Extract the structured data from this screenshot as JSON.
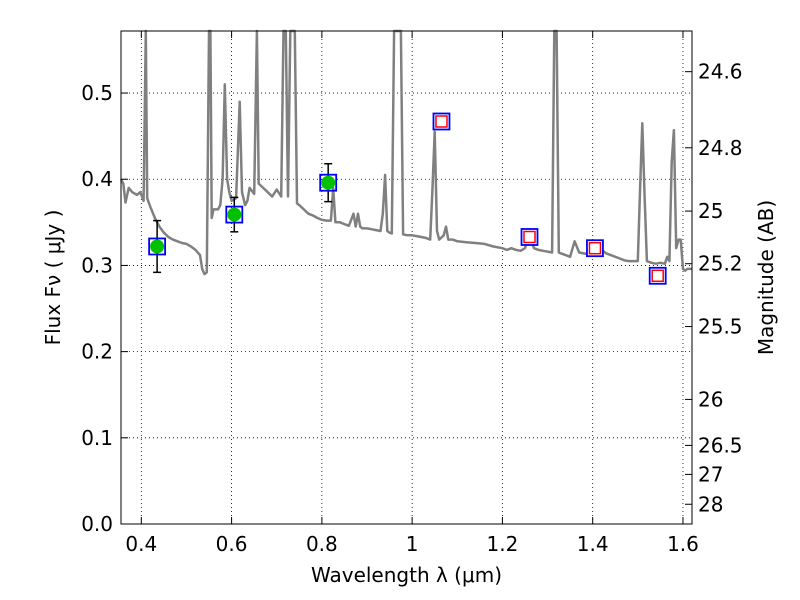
{
  "chart_data": {
    "type": "scatter",
    "xlabel": "Wavelength  λ (μm)",
    "ylabel": "Flux  Fν  ( μJy )",
    "y2label": "Magnitude (AB)",
    "xlim": [
      0.355,
      1.62
    ],
    "ylim": [
      0.0,
      0.572
    ],
    "grid": true,
    "x_ticks": [
      {
        "value": 0.4,
        "label": "0.4"
      },
      {
        "value": 0.6,
        "label": "0.6"
      },
      {
        "value": 0.8,
        "label": "0.8"
      },
      {
        "value": 1.0,
        "label": "1"
      },
      {
        "value": 1.2,
        "label": "1.2"
      },
      {
        "value": 1.4,
        "label": "1.4"
      },
      {
        "value": 1.6,
        "label": "1.6"
      }
    ],
    "y_ticks": [
      {
        "value": 0.0,
        "label": "0.0"
      },
      {
        "value": 0.1,
        "label": "0.1"
      },
      {
        "value": 0.2,
        "label": "0.2"
      },
      {
        "value": 0.3,
        "label": "0.3"
      },
      {
        "value": 0.4,
        "label": "0.4"
      },
      {
        "value": 0.5,
        "label": "0.5"
      }
    ],
    "y2_ticks": [
      {
        "mag": 24.6,
        "label": "24.6"
      },
      {
        "mag": 24.8,
        "label": "24.8"
      },
      {
        "mag": 25.0,
        "label": "25"
      },
      {
        "mag": 25.2,
        "label": "25.2"
      },
      {
        "mag": 25.5,
        "label": "25.5"
      },
      {
        "mag": 26.0,
        "label": "26"
      },
      {
        "mag": 26.5,
        "label": "26.5"
      },
      {
        "mag": 27.0,
        "label": "27"
      },
      {
        "mag": 28.0,
        "label": "28"
      }
    ],
    "series": [
      {
        "kind": "spectrum",
        "color": "#808080",
        "points": [
          [
            0.355,
            0.4
          ],
          [
            0.36,
            0.395
          ],
          [
            0.365,
            0.373
          ],
          [
            0.372,
            0.39
          ],
          [
            0.38,
            0.385
          ],
          [
            0.39,
            0.382
          ],
          [
            0.398,
            0.385
          ],
          [
            0.405,
            0.375
          ],
          [
            0.41,
            0.575
          ],
          [
            0.413,
            0.378
          ],
          [
            0.42,
            0.368
          ],
          [
            0.43,
            0.355
          ],
          [
            0.44,
            0.345
          ],
          [
            0.45,
            0.338
          ],
          [
            0.46,
            0.333
          ],
          [
            0.47,
            0.33
          ],
          [
            0.48,
            0.328
          ],
          [
            0.49,
            0.326
          ],
          [
            0.5,
            0.325
          ],
          [
            0.51,
            0.322
          ],
          [
            0.52,
            0.318
          ],
          [
            0.53,
            0.312
          ],
          [
            0.535,
            0.296
          ],
          [
            0.54,
            0.29
          ],
          [
            0.545,
            0.292
          ],
          [
            0.55,
            0.575
          ],
          [
            0.553,
            0.575
          ],
          [
            0.556,
            0.355
          ],
          [
            0.56,
            0.365
          ],
          [
            0.57,
            0.365
          ],
          [
            0.575,
            0.37
          ],
          [
            0.58,
            0.4
          ],
          [
            0.585,
            0.51
          ],
          [
            0.59,
            0.4
          ],
          [
            0.595,
            0.385
          ],
          [
            0.6,
            0.375
          ],
          [
            0.61,
            0.378
          ],
          [
            0.618,
            0.49
          ],
          [
            0.623,
            0.385
          ],
          [
            0.63,
            0.37
          ],
          [
            0.635,
            0.375
          ],
          [
            0.64,
            0.39
          ],
          [
            0.65,
            0.383
          ],
          [
            0.656,
            0.575
          ],
          [
            0.66,
            0.395
          ],
          [
            0.67,
            0.39
          ],
          [
            0.68,
            0.385
          ],
          [
            0.69,
            0.38
          ],
          [
            0.7,
            0.388
          ],
          [
            0.71,
            0.38
          ],
          [
            0.715,
            0.575
          ],
          [
            0.72,
            0.575
          ],
          [
            0.725,
            0.38
          ],
          [
            0.73,
            0.575
          ],
          [
            0.735,
            0.575
          ],
          [
            0.74,
            0.575
          ],
          [
            0.745,
            0.372
          ],
          [
            0.75,
            0.37
          ],
          [
            0.76,
            0.365
          ],
          [
            0.77,
            0.36
          ],
          [
            0.78,
            0.358
          ],
          [
            0.79,
            0.355
          ],
          [
            0.8,
            0.353
          ],
          [
            0.81,
            0.352
          ],
          [
            0.82,
            0.352
          ],
          [
            0.825,
            0.39
          ],
          [
            0.83,
            0.35
          ],
          [
            0.84,
            0.35
          ],
          [
            0.85,
            0.348
          ],
          [
            0.86,
            0.346
          ],
          [
            0.87,
            0.36
          ],
          [
            0.875,
            0.345
          ],
          [
            0.88,
            0.36
          ],
          [
            0.885,
            0.345
          ],
          [
            0.89,
            0.343
          ],
          [
            0.9,
            0.343
          ],
          [
            0.91,
            0.342
          ],
          [
            0.92,
            0.341
          ],
          [
            0.93,
            0.34
          ],
          [
            0.935,
            0.36
          ],
          [
            0.94,
            0.405
          ],
          [
            0.945,
            0.34
          ],
          [
            0.95,
            0.338
          ],
          [
            0.955,
            0.337
          ],
          [
            0.96,
            0.575
          ],
          [
            0.965,
            0.575
          ],
          [
            0.97,
            0.575
          ],
          [
            0.975,
            0.575
          ],
          [
            0.98,
            0.336
          ],
          [
            0.99,
            0.335
          ],
          [
            1.0,
            0.335
          ],
          [
            1.01,
            0.334
          ],
          [
            1.02,
            0.333
          ],
          [
            1.03,
            0.332
          ],
          [
            1.04,
            0.33
          ],
          [
            1.045,
            0.39
          ],
          [
            1.05,
            0.455
          ],
          [
            1.055,
            0.34
          ],
          [
            1.06,
            0.33
          ],
          [
            1.07,
            0.335
          ],
          [
            1.075,
            0.345
          ],
          [
            1.08,
            0.33
          ],
          [
            1.09,
            0.33
          ],
          [
            1.1,
            0.328
          ],
          [
            1.12,
            0.327
          ],
          [
            1.14,
            0.326
          ],
          [
            1.16,
            0.325
          ],
          [
            1.18,
            0.322
          ],
          [
            1.2,
            0.32
          ],
          [
            1.21,
            0.318
          ],
          [
            1.22,
            0.32
          ],
          [
            1.23,
            0.318
          ],
          [
            1.24,
            0.317
          ],
          [
            1.25,
            0.32
          ],
          [
            1.26,
            0.335
          ],
          [
            1.27,
            0.32
          ],
          [
            1.28,
            0.318
          ],
          [
            1.29,
            0.317
          ],
          [
            1.3,
            0.316
          ],
          [
            1.31,
            0.315
          ],
          [
            1.315,
            0.575
          ],
          [
            1.32,
            0.575
          ],
          [
            1.325,
            0.315
          ],
          [
            1.33,
            0.314
          ],
          [
            1.34,
            0.312
          ],
          [
            1.35,
            0.31
          ],
          [
            1.36,
            0.328
          ],
          [
            1.37,
            0.315
          ],
          [
            1.38,
            0.314
          ],
          [
            1.39,
            0.313
          ],
          [
            1.4,
            0.315
          ],
          [
            1.41,
            0.325
          ],
          [
            1.42,
            0.318
          ],
          [
            1.43,
            0.314
          ],
          [
            1.44,
            0.312
          ],
          [
            1.45,
            0.31
          ],
          [
            1.46,
            0.308
          ],
          [
            1.47,
            0.306
          ],
          [
            1.48,
            0.305
          ],
          [
            1.49,
            0.305
          ],
          [
            1.5,
            0.305
          ],
          [
            1.505,
            0.39
          ],
          [
            1.51,
            0.465
          ],
          [
            1.515,
            0.38
          ],
          [
            1.52,
            0.305
          ],
          [
            1.53,
            0.303
          ],
          [
            1.54,
            0.302
          ],
          [
            1.55,
            0.303
          ],
          [
            1.56,
            0.302
          ],
          [
            1.565,
            0.31
          ],
          [
            1.57,
            0.305
          ],
          [
            1.575,
            0.42
          ],
          [
            1.58,
            0.457
          ],
          [
            1.585,
            0.32
          ],
          [
            1.59,
            0.33
          ],
          [
            1.595,
            0.33
          ],
          [
            1.6,
            0.296
          ],
          [
            1.605,
            0.294
          ],
          [
            1.61,
            0.296
          ],
          [
            1.62,
            0.296
          ]
        ]
      },
      {
        "kind": "observed",
        "marker": "filled-circle-in-square",
        "fill": "#00c000",
        "square_color": "#0000ff",
        "errorbar_color": "#000000",
        "points": [
          {
            "x": 0.435,
            "y": 0.322,
            "err": 0.03
          },
          {
            "x": 0.606,
            "y": 0.359,
            "err": 0.02
          },
          {
            "x": 0.814,
            "y": 0.396,
            "err": 0.022
          }
        ]
      },
      {
        "kind": "model",
        "marker": "open-square-in-square",
        "outer_color": "#0000ff",
        "inner_color": "#ff0000",
        "points": [
          {
            "x": 1.065,
            "y": 0.467
          },
          {
            "x": 1.26,
            "y": 0.333
          },
          {
            "x": 1.405,
            "y": 0.32
          },
          {
            "x": 1.544,
            "y": 0.288
          }
        ]
      }
    ]
  }
}
